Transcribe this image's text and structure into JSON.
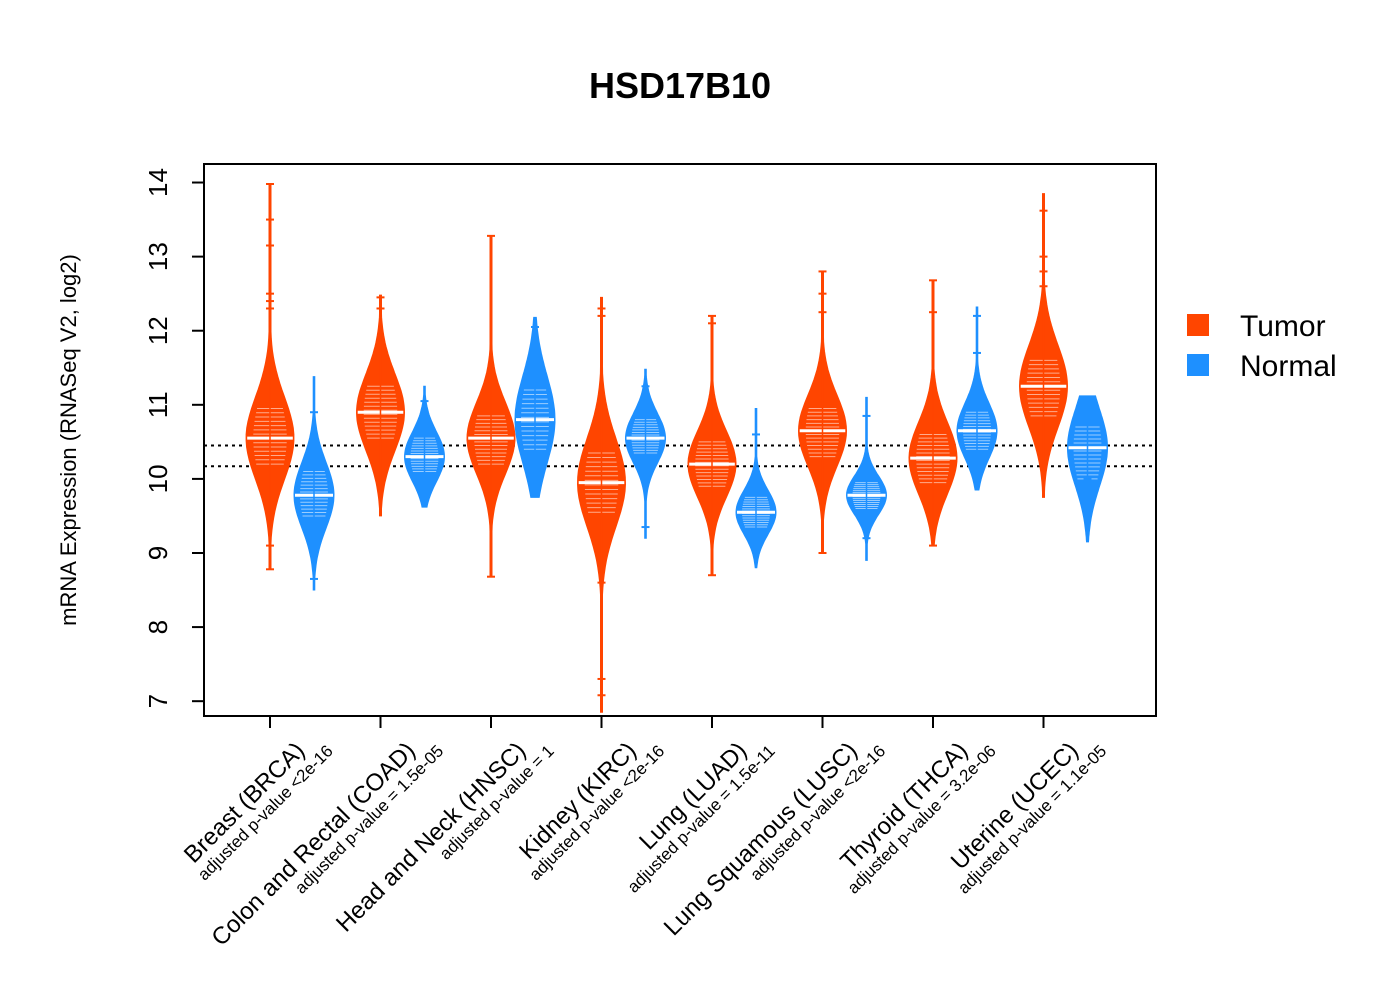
{
  "chart_data": {
    "type": "violin",
    "title": "HSD17B10",
    "ylabel": "mRNA Expression (RNASeq V2, log2)",
    "xlabel": "",
    "ylim": [
      6.8,
      14.25
    ],
    "yticks": [
      7,
      8,
      9,
      10,
      11,
      12,
      13,
      14
    ],
    "reference_lines": [
      10.17,
      10.45
    ],
    "grid": false,
    "legend_position": "right",
    "series": [
      {
        "name": "Tumor",
        "color": "#FF4500"
      },
      {
        "name": "Normal",
        "color": "#1E90FF"
      }
    ],
    "categories": [
      {
        "label": "Breast (BRCA)",
        "pvalue": "adjusted p-value <2e-16",
        "tumor": {
          "min": 8.78,
          "max": 13.98,
          "median": 10.55,
          "q1": 10.2,
          "q3": 10.95,
          "outliers": [
            13.98,
            13.5,
            13.15,
            12.5,
            12.4,
            12.3,
            8.78,
            9.1
          ]
        },
        "normal": {
          "min": 8.5,
          "max": 11.38,
          "median": 9.78,
          "q1": 9.5,
          "q3": 10.1,
          "outliers": [
            10.9,
            8.65
          ]
        }
      },
      {
        "label": "Colon and Rectal (COAD)",
        "pvalue": "adjusted p-value = 1.5e-05",
        "tumor": {
          "min": 9.5,
          "max": 12.48,
          "median": 10.9,
          "q1": 10.55,
          "q3": 11.25,
          "outliers": [
            12.45,
            12.3
          ]
        },
        "normal": {
          "min": 9.62,
          "max": 11.25,
          "median": 10.3,
          "q1": 10.1,
          "q3": 10.55,
          "outliers": [
            11.05
          ]
        }
      },
      {
        "label": "Head and Neck (HNSC)",
        "pvalue": "adjusted p-value = 1",
        "tumor": {
          "min": 8.68,
          "max": 13.28,
          "median": 10.55,
          "q1": 10.2,
          "q3": 10.85,
          "outliers": [
            13.28,
            8.68
          ]
        },
        "normal": {
          "min": 9.75,
          "max": 12.18,
          "median": 10.8,
          "q1": 10.4,
          "q3": 11.2,
          "outliers": [
            12.05
          ]
        }
      },
      {
        "label": "Kidney (KIRC)",
        "pvalue": "adjusted p-value <2e-16",
        "tumor": {
          "min": 6.85,
          "max": 12.45,
          "median": 9.95,
          "q1": 9.55,
          "q3": 10.35,
          "outliers": [
            12.3,
            12.2,
            7.3,
            7.08,
            8.6
          ]
        },
        "normal": {
          "min": 9.2,
          "max": 11.48,
          "median": 10.55,
          "q1": 10.35,
          "q3": 10.8,
          "outliers": [
            9.35,
            11.25
          ]
        }
      },
      {
        "label": "Lung (LUAD)",
        "pvalue": "adjusted p-value = 1.5e-11",
        "tumor": {
          "min": 8.7,
          "max": 12.2,
          "median": 10.2,
          "q1": 9.9,
          "q3": 10.5,
          "outliers": [
            12.2,
            12.1,
            8.7
          ]
        },
        "normal": {
          "min": 8.8,
          "max": 10.95,
          "median": 9.55,
          "q1": 9.35,
          "q3": 9.75,
          "outliers": [
            10.6
          ]
        }
      },
      {
        "label": "Lung Squamous (LUSC)",
        "pvalue": "adjusted p-value <2e-16",
        "tumor": {
          "min": 9.0,
          "max": 12.8,
          "median": 10.65,
          "q1": 10.3,
          "q3": 10.95,
          "outliers": [
            12.8,
            12.5,
            12.25,
            9.0
          ]
        },
        "normal": {
          "min": 8.9,
          "max": 11.1,
          "median": 9.78,
          "q1": 9.6,
          "q3": 9.95,
          "outliers": [
            10.85,
            9.2
          ]
        }
      },
      {
        "label": "Thyroid (THCA)",
        "pvalue": "adjusted p-value = 3.2e-06",
        "tumor": {
          "min": 9.1,
          "max": 12.68,
          "median": 10.28,
          "q1": 9.95,
          "q3": 10.6,
          "outliers": [
            12.68,
            12.25,
            9.1
          ]
        },
        "normal": {
          "min": 9.85,
          "max": 12.32,
          "median": 10.65,
          "q1": 10.4,
          "q3": 10.9,
          "outliers": [
            12.2,
            11.7
          ]
        }
      },
      {
        "label": "Uterine (UCEC)",
        "pvalue": "adjusted p-value = 1.1e-05",
        "tumor": {
          "min": 9.75,
          "max": 13.85,
          "median": 11.25,
          "q1": 10.85,
          "q3": 11.6,
          "outliers": [
            13.62,
            13.0,
            12.8,
            12.6
          ]
        },
        "normal": {
          "min": 9.15,
          "max": 11.12,
          "median": 10.42,
          "q1": 10.0,
          "q3": 10.7,
          "outliers": [
            10.0
          ]
        }
      }
    ]
  }
}
